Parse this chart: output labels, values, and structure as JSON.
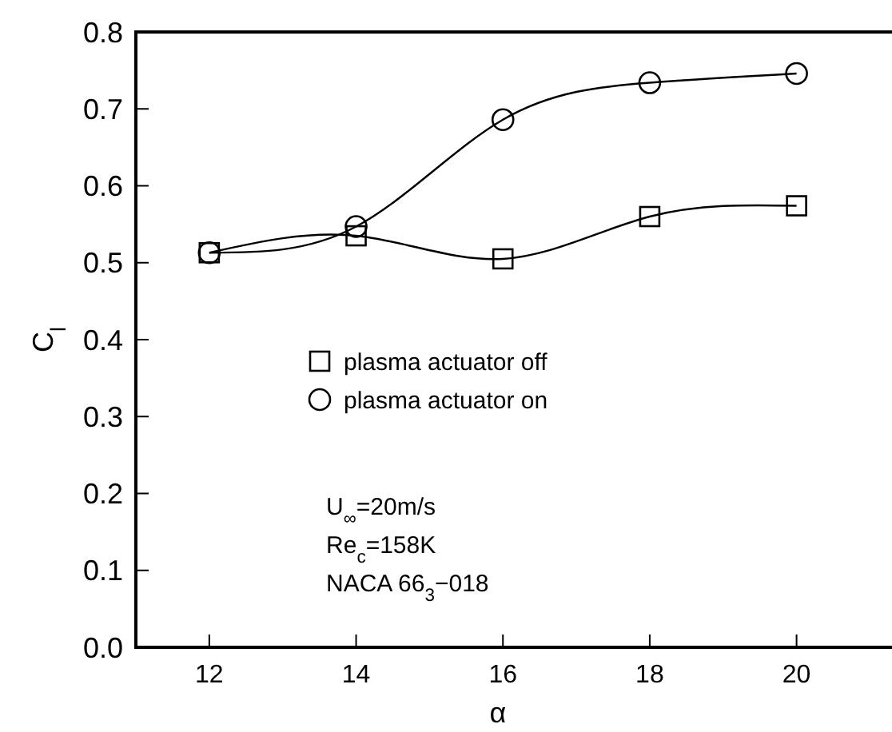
{
  "chart_data": {
    "type": "line",
    "xlabel": "α",
    "ylabel": "C$_{l}$",
    "x": [
      12,
      14,
      16,
      18,
      20
    ],
    "xlim": [
      11,
      21.3
    ],
    "xticks": [
      12,
      14,
      16,
      18,
      20
    ],
    "ylim": [
      0,
      0.8
    ],
    "yticks": [
      {
        "value": 0,
        "label": "0.0"
      },
      0.1,
      0.2,
      0.3,
      0.4,
      0.5,
      0.6,
      0.7,
      0.8
    ],
    "grid": false,
    "legend": "center",
    "line_style": "solid",
    "series": [
      {
        "name": "plasma actuator off",
        "color": "#000000",
        "marker": "square",
        "values": [
          0.513,
          0.535,
          0.505,
          0.56,
          0.574
        ]
      },
      {
        "name": "plasma actuator on",
        "color": "#000000",
        "marker": "circle",
        "values": [
          0.513,
          0.547,
          0.686,
          0.734,
          0.746
        ]
      }
    ],
    "annotations": [
      "U$_{∞}$=20m/s",
      "Re$_{c}$=158K",
      "NACA 66$_{3}$−018"
    ]
  }
}
